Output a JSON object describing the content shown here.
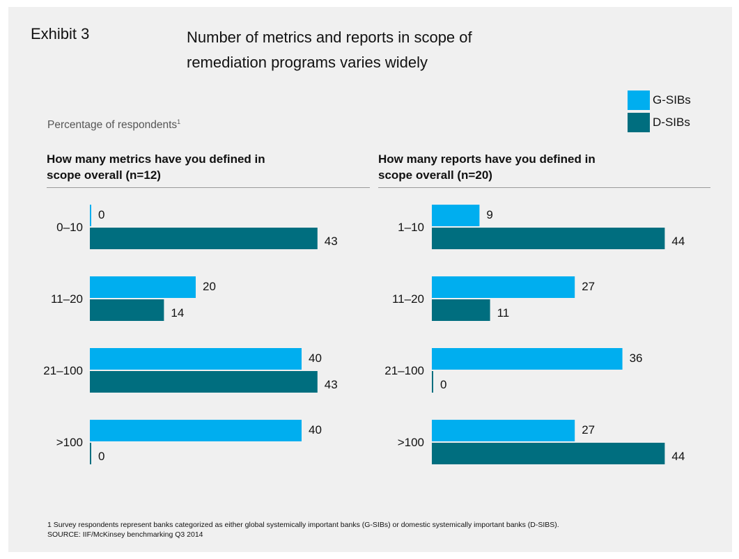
{
  "header": {
    "exhibit": "Exhibit 3",
    "title_line1": "Number of metrics and reports in scope of",
    "title_line2": "remediation programs varies widely"
  },
  "subtitle": "Percentage of respondents",
  "subtitle_sup": "1",
  "legend": [
    {
      "label": "G-SIBs",
      "color": "#00aeef"
    },
    {
      "label": "D-SIBs",
      "color": "#006e7f"
    }
  ],
  "footnote": {
    "line1": "1  Survey respondents represent banks categorized as either global systemically important banks (G-SIBs) or domestic systemically important banks (D-SIBS).",
    "line2": "SOURCE: IIF/McKinsey benchmarking Q3 2014"
  },
  "chart_data": [
    {
      "type": "bar",
      "orientation": "horizontal",
      "title": "How many metrics have you defined in scope overall (n=12)",
      "title_line1": "How many metrics have you defined in",
      "title_line2": "scope overall (n=12)",
      "categories": [
        "0–10",
        "11–20",
        "21–100",
        ">100"
      ],
      "series": [
        {
          "name": "G-SIBs",
          "color": "#00aeef",
          "values": [
            0,
            20,
            40,
            40
          ]
        },
        {
          "name": "D-SIBs",
          "color": "#006e7f",
          "values": [
            43,
            14,
            43,
            0
          ]
        }
      ],
      "xlim": [
        0,
        50
      ],
      "grid": false,
      "data_labels": true
    },
    {
      "type": "bar",
      "orientation": "horizontal",
      "title": "How many reports have you defined in scope overall (n=20)",
      "title_line1": "How many reports have you defined in",
      "title_line2": "scope overall (n=20)",
      "categories": [
        "1–10",
        "11–20",
        "21–100",
        ">100"
      ],
      "series": [
        {
          "name": "G-SIBs",
          "color": "#00aeef",
          "values": [
            9,
            27,
            36,
            27
          ]
        },
        {
          "name": "D-SIBs",
          "color": "#006e7f",
          "values": [
            44,
            11,
            0,
            44
          ]
        }
      ],
      "xlim": [
        0,
        50
      ],
      "grid": false,
      "data_labels": true
    }
  ]
}
